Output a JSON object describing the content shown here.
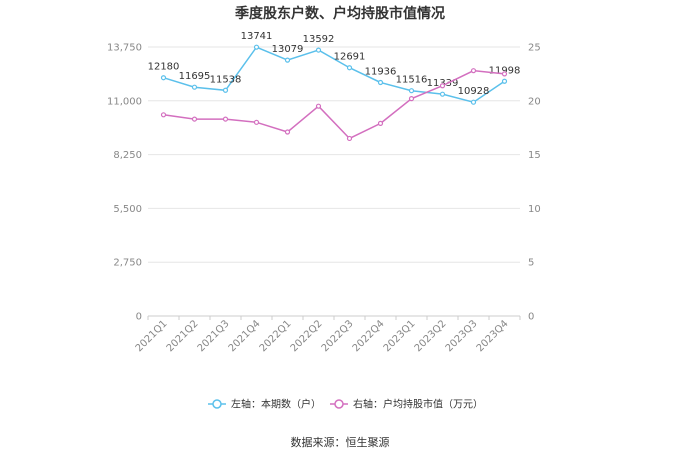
{
  "chart_data": {
    "type": "line",
    "title": "季度股东户数、户均持股市值情况",
    "categories": [
      "2021Q1",
      "2021Q2",
      "2021Q3",
      "2021Q4",
      "2022Q1",
      "2022Q2",
      "2022Q3",
      "2022Q4",
      "2023Q1",
      "2023Q2",
      "2023Q3",
      "2023Q4"
    ],
    "left_axis": {
      "ylim": [
        0,
        13750
      ],
      "ticks": [
        "0",
        "2,750",
        "5,500",
        "8,250",
        "11,000",
        "13,750"
      ],
      "tick_values": [
        0,
        2750,
        5500,
        8250,
        11000,
        13750
      ]
    },
    "right_axis": {
      "ylim": [
        0,
        25
      ],
      "ticks": [
        "0",
        "5",
        "10",
        "15",
        "20",
        "25"
      ],
      "tick_values": [
        0,
        5,
        10,
        15,
        20,
        25
      ]
    },
    "series": [
      {
        "name": "左轴：本期数（户）",
        "axis": "left",
        "color": "#5bc0eb",
        "values": [
          12180,
          11695,
          11538,
          13741,
          13079,
          13592,
          12691,
          11936,
          11516,
          11339,
          10928,
          11998
        ],
        "labels": [
          "12180",
          "11695",
          "11538",
          "13741",
          "13079",
          "13592",
          "12691",
          "11936",
          "11516",
          "11339",
          "10928",
          "11998"
        ]
      },
      {
        "name": "右轴：户均持股市值（万元）",
        "axis": "right",
        "color": "#d36fbf",
        "values": [
          18.7,
          18.3,
          18.3,
          18.0,
          17.1,
          19.5,
          16.5,
          17.9,
          20.2,
          21.4,
          22.8,
          22.5
        ]
      }
    ],
    "grid": true,
    "legend_position": "bottom"
  },
  "source": "数据来源：恒生聚源"
}
